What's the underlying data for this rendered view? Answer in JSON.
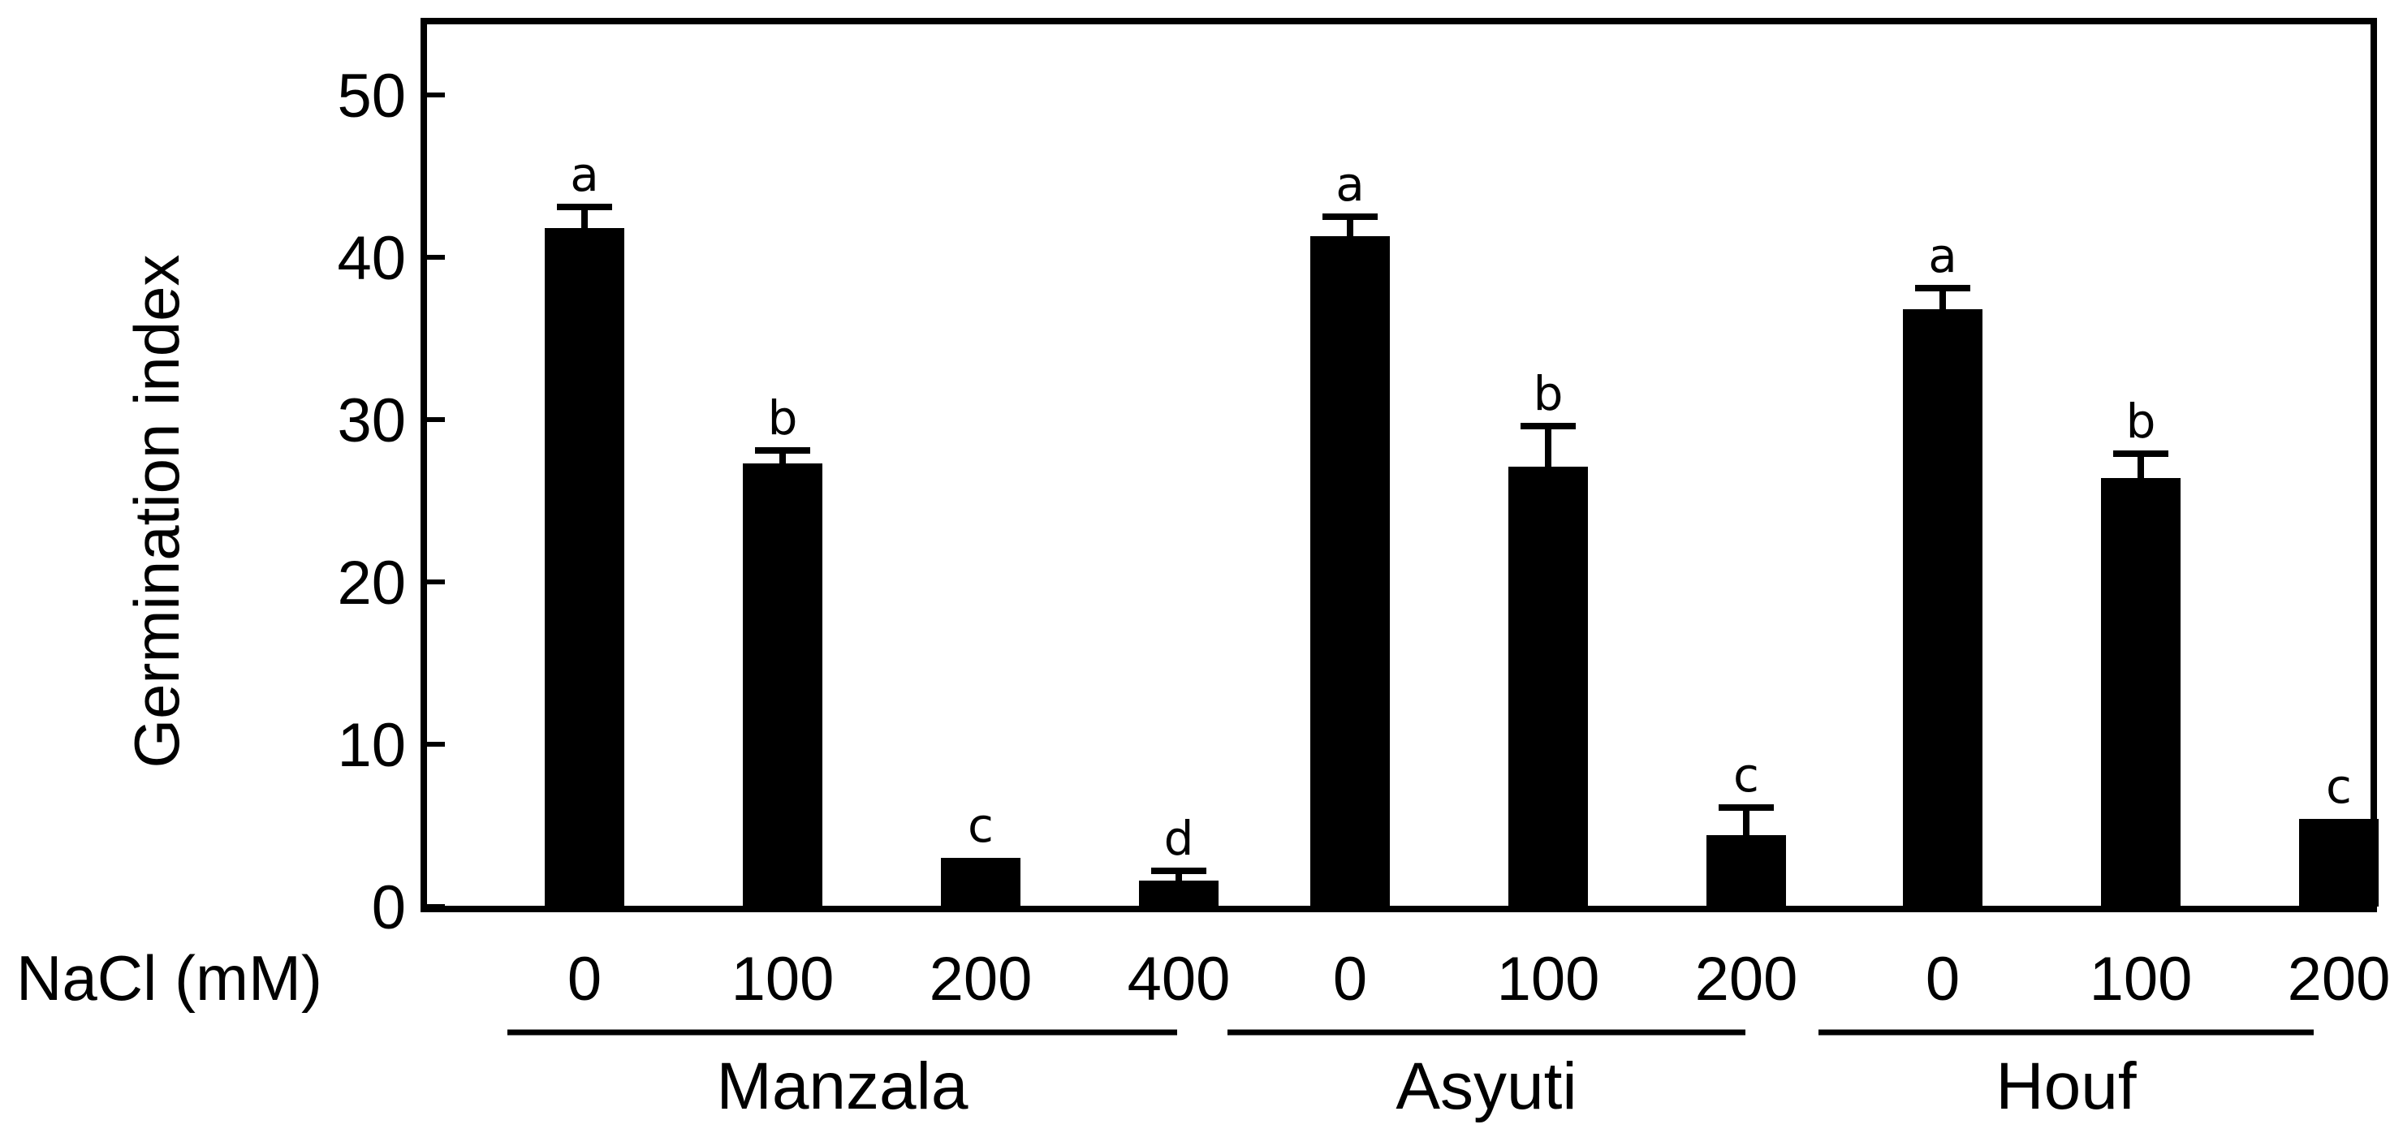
{
  "chart_data": {
    "type": "bar",
    "ylabel": "Germination index",
    "x_axis_label": "NaCl (mM)",
    "ylim": [
      0,
      50
    ],
    "yticks": [
      0,
      10,
      20,
      30,
      40,
      50
    ],
    "groups": [
      {
        "name": "Manzala",
        "bars": [
          {
            "category": "0",
            "value": 41.8,
            "error": 1.3,
            "letter": "a"
          },
          {
            "category": "100",
            "value": 27.3,
            "error": 0.8,
            "letter": "b"
          },
          {
            "category": "200",
            "value": 3.0,
            "error": 0.0,
            "letter": "c"
          },
          {
            "category": "400",
            "value": 1.6,
            "error": 0.6,
            "letter": "d"
          }
        ]
      },
      {
        "name": "Asyuti",
        "bars": [
          {
            "category": "0",
            "value": 41.3,
            "error": 1.2,
            "letter": "a"
          },
          {
            "category": "100",
            "value": 27.1,
            "error": 2.5,
            "letter": "b"
          },
          {
            "category": "200",
            "value": 4.4,
            "error": 1.7,
            "letter": "c"
          }
        ]
      },
      {
        "name": "Houf",
        "bars": [
          {
            "category": "0",
            "value": 36.8,
            "error": 1.3,
            "letter": "a"
          },
          {
            "category": "100",
            "value": 26.4,
            "error": 1.5,
            "letter": "b"
          },
          {
            "category": "200",
            "value": 5.4,
            "error": 0.0,
            "letter": "c"
          }
        ]
      }
    ],
    "colors": {
      "bar": "#000000"
    }
  }
}
